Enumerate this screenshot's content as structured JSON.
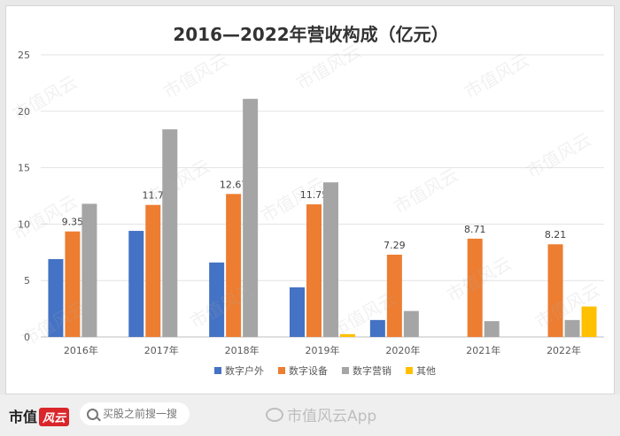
{
  "chart_data": {
    "type": "bar",
    "title": "2016—2022年营收构成（亿元）",
    "categories": [
      "2016年",
      "2017年",
      "2018年",
      "2019年",
      "2020年",
      "2021年",
      "2022年"
    ],
    "series": [
      {
        "name": "数字户外",
        "color": "#4472c4",
        "values": [
          6.9,
          9.4,
          6.6,
          4.4,
          1.5,
          0,
          0
        ]
      },
      {
        "name": "数字设备",
        "color": "#ed7d31",
        "values": [
          9.35,
          11.7,
          12.67,
          11.75,
          7.29,
          8.71,
          8.21
        ]
      },
      {
        "name": "数字营销",
        "color": "#a5a5a5",
        "values": [
          11.8,
          18.4,
          21.1,
          13.7,
          2.3,
          1.4,
          1.5
        ]
      },
      {
        "name": "其他",
        "color": "#ffc000",
        "values": [
          0,
          0,
          0,
          0.25,
          0,
          0,
          2.7
        ]
      }
    ],
    "data_labels": [
      "9.35",
      "11.7",
      "12.67",
      "11.75",
      "7.29",
      "8.71",
      "8.21"
    ],
    "ylim": [
      0,
      25
    ],
    "yticks": [
      "0",
      "5",
      "10",
      "15",
      "20",
      "25"
    ],
    "grid": true,
    "legend_position": "bottom"
  },
  "watermark": "市值风云",
  "footer": {
    "logo_text": "市值",
    "logo_badge": "风云",
    "search_placeholder": "买股之前搜一搜",
    "weibo_text": "市值风云App"
  }
}
